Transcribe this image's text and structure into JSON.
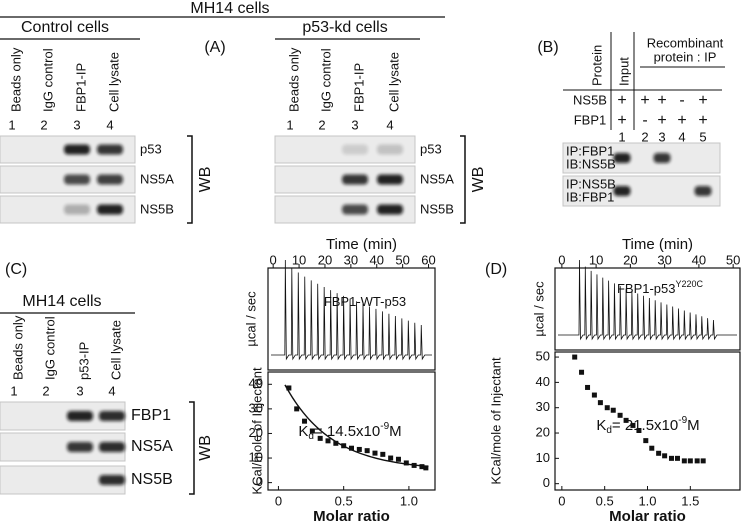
{
  "panel_a": {
    "label": "(A)",
    "header": "MH14 cells",
    "groups": [
      {
        "title": "Control cells",
        "lanes": [
          "Beads only",
          "IgG control",
          "FBP1-IP",
          "Cell lysate"
        ],
        "lane_numbers": [
          "1",
          "2",
          "3",
          "4"
        ],
        "blots": [
          "p53",
          "NS5A",
          "NS5B"
        ],
        "method": "WB"
      },
      {
        "title": "p53-kd cells",
        "lanes": [
          "Beads only",
          "IgG control",
          "FBP1-IP",
          "Cell lysate"
        ],
        "lane_numbers": [
          "1",
          "2",
          "3",
          "4"
        ],
        "blots": [
          "p53",
          "NS5A",
          "NS5B"
        ],
        "method": "WB"
      }
    ]
  },
  "panel_b": {
    "label": "(B)",
    "protein_header": "Protein",
    "input_header": "Input",
    "ip_header": [
      "Recombinant",
      "protein : IP"
    ],
    "rows": [
      {
        "name": "NS5B",
        "signs": [
          "+",
          "+",
          "+",
          "-",
          "+"
        ]
      },
      {
        "name": "FBP1",
        "signs": [
          "+",
          "-",
          "+",
          "+",
          "+"
        ]
      }
    ],
    "lane_numbers": [
      "1",
      "2",
      "3",
      "4",
      "5"
    ],
    "blots": [
      [
        "IP:FBP1",
        "IB:NS5B"
      ],
      [
        "IP:NS5B",
        "IB:FBP1"
      ]
    ]
  },
  "panel_c": {
    "label": "(C)",
    "header": "MH14 cells",
    "lanes": [
      "Beads only",
      "IgG control",
      "p53-IP",
      "Cell lysate"
    ],
    "lane_numbers": [
      "1",
      "2",
      "3",
      "4"
    ],
    "blots": [
      "FBP1",
      "NS5A",
      "NS5B"
    ],
    "method": "WB"
  },
  "itc": [
    {
      "title": "FBP1-WT-p53",
      "top_x_label": "Time (min)",
      "top_xlim": [
        -2,
        62.5
      ],
      "top_xticks": [
        0,
        10,
        20,
        30,
        40,
        50,
        60
      ],
      "top_y_label": "µcal / sec",
      "bottom_y_label": "KCal/mole of Injectant",
      "x_label": "Molar ratio",
      "xlim": [
        -0.08,
        1.2
      ],
      "xticks": [
        0,
        0.5,
        {
          "value": 1,
          "label": "1.0"
        }
      ],
      "ylim": [
        -3,
        45
      ],
      "yticks": [
        0,
        10,
        20,
        30,
        40
      ],
      "kd": {
        "symbol": "K",
        "subscript": "d",
        "text": "= 14.5x10",
        "exponent": "-9",
        "unit": "M"
      },
      "points": {
        "x": [
          0.08,
          0.14,
          0.2,
          0.26,
          0.32,
          0.38,
          0.44,
          0.5,
          0.56,
          0.62,
          0.68,
          0.74,
          0.8,
          0.86,
          0.92,
          0.98,
          1.04,
          1.1,
          1.13
        ],
        "y": [
          38.5,
          30,
          25,
          21,
          18,
          17,
          16,
          15,
          14,
          13.5,
          13,
          12,
          11.5,
          10,
          9.5,
          8,
          7,
          6.5,
          6
        ]
      }
    },
    {
      "label": "(D)",
      "title": "FBP1-p53",
      "title_superscript": "Y220C",
      "top_x_label": "Time (min)",
      "top_xlim": [
        -2,
        52
      ],
      "top_xticks": [
        0,
        10,
        20,
        30,
        40,
        50
      ],
      "top_y_label": "µcal / sec",
      "bottom_y_label": "KCal/mole of Injectant",
      "x_label": "Molar ratio",
      "xlim": [
        -0.08,
        2.08
      ],
      "xticks": [
        0,
        0.5,
        {
          "value": 1,
          "label": "1.0"
        },
        1.5
      ],
      "ylim": [
        -2.5,
        52
      ],
      "yticks": [
        0,
        10,
        20,
        30,
        40,
        50
      ],
      "kd": {
        "symbol": "K",
        "subscript": "d",
        "text": "= 21.5x10",
        "exponent": "-9",
        "unit": "M"
      },
      "points": {
        "x": [
          0.15,
          0.23,
          0.3,
          0.38,
          0.45,
          0.53,
          0.6,
          0.68,
          0.75,
          0.83,
          0.9,
          0.98,
          1.05,
          1.13,
          1.2,
          1.28,
          1.35,
          1.43,
          1.5,
          1.58,
          1.65
        ],
        "y": [
          50,
          44,
          38,
          35,
          32,
          30,
          29,
          27,
          25,
          23,
          21,
          17,
          14,
          12,
          11,
          10,
          10,
          9,
          9,
          9,
          9
        ]
      }
    }
  ]
}
